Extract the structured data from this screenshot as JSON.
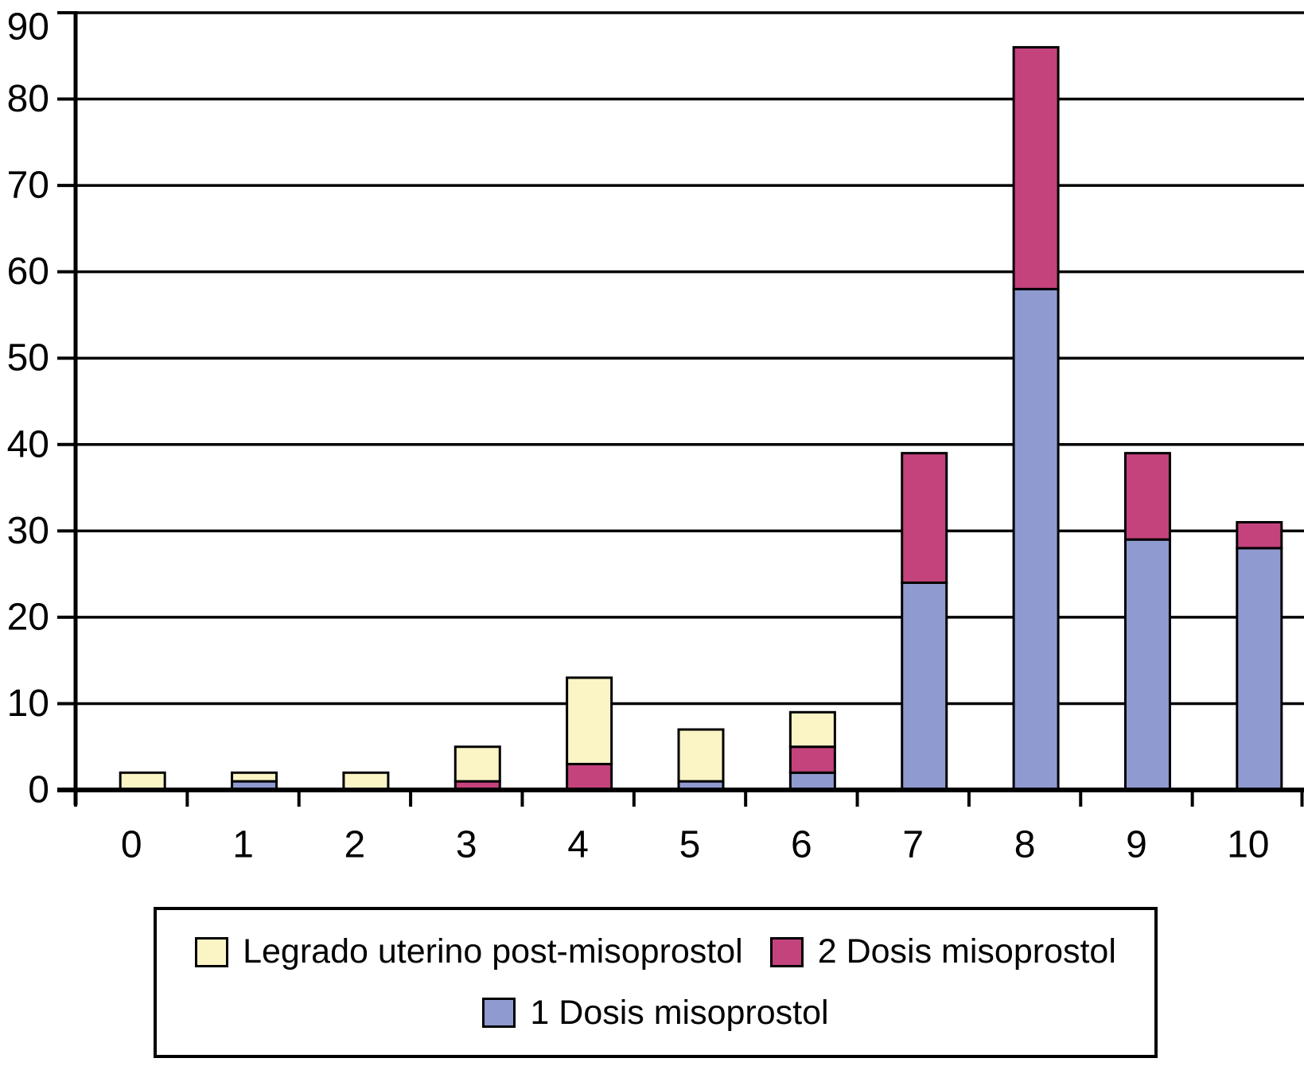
{
  "chart_data": {
    "type": "bar",
    "stacked": true,
    "title": "",
    "xlabel": "",
    "ylabel": "",
    "categories": [
      "0",
      "1",
      "2",
      "3",
      "4",
      "5",
      "6",
      "7",
      "8",
      "9",
      "10"
    ],
    "series": [
      {
        "name": "1 Dosis misoprostol",
        "color": "#8F9BD0",
        "values": [
          0,
          1,
          0,
          0,
          0,
          1,
          2,
          24,
          58,
          29,
          28
        ]
      },
      {
        "name": "2 Dosis misoprostol",
        "color": "#C4437D",
        "values": [
          0,
          0,
          0,
          1,
          3,
          0,
          3,
          15,
          28,
          10,
          3
        ]
      },
      {
        "name": "Legrado uterino post-misoprostol",
        "color": "#FBF5C5",
        "values": [
          2,
          1,
          2,
          4,
          10,
          6,
          4,
          0,
          0,
          0,
          0
        ]
      }
    ],
    "stack_order_bottom_to_top": [
      "1 Dosis misoprostol",
      "2 Dosis misoprostol",
      "Legrado uterino post-misoprostol"
    ],
    "totals": [
      2,
      2,
      2,
      5,
      13,
      7,
      9,
      39,
      86,
      39,
      31
    ],
    "ylim": [
      0,
      90
    ],
    "ytick_step": 10,
    "ytick_labels": [
      "0",
      "10",
      "20",
      "30",
      "40",
      "50",
      "60",
      "70",
      "80",
      "90"
    ],
    "grid": "horizontal",
    "gridline_color": "#000000",
    "bar_outline_color": "#000000",
    "legend_position": "bottom"
  },
  "legend": {
    "items": [
      {
        "label": "Legrado uterino post-misoprostol",
        "color": "#FBF5C5"
      },
      {
        "label": "2 Dosis misoprostol",
        "color": "#C4437D"
      },
      {
        "label": "1 Dosis misoprostol",
        "color": "#8F9BD0"
      }
    ]
  },
  "colors": {
    "background": "#FFFFFF",
    "axis": "#000000",
    "text": "#000000"
  }
}
